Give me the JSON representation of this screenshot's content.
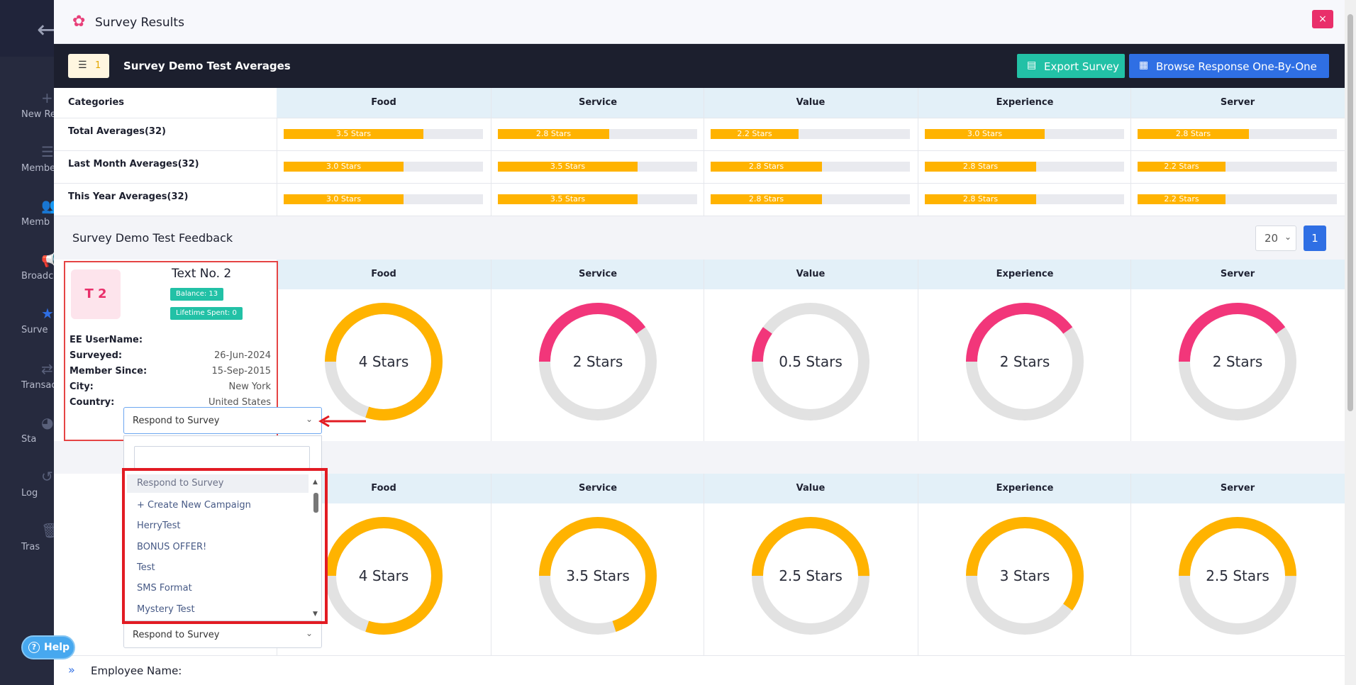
{
  "sidebar": {
    "items": [
      {
        "label": "New Re",
        "icon": "plus-icon"
      },
      {
        "label": "Membe",
        "icon": "list-icon"
      },
      {
        "label": "Memb",
        "icon": "users-icon"
      },
      {
        "label": "Broadc",
        "icon": "megaphone-icon"
      },
      {
        "label": "Surve",
        "icon": "star-icon"
      },
      {
        "label": "Transac",
        "icon": "transactions-icon"
      },
      {
        "label": "Sta",
        "icon": "pie-chart-icon"
      },
      {
        "label": "Log",
        "icon": "history-icon"
      },
      {
        "label": "Tras",
        "icon": "trash-icon"
      }
    ],
    "help_label": "Help"
  },
  "modal": {
    "title": "Survey Results",
    "close_label": "×",
    "filter_count": "1",
    "averages_title": "Survey Demo Test Averages",
    "export_label": "Export Survey",
    "browse_label": "Browse Response One-By-One"
  },
  "averages": {
    "categories_header": "Categories",
    "columns": [
      "Food",
      "Service",
      "Value",
      "Experience",
      "Server"
    ],
    "rows": [
      {
        "label": "Total Averages(32)",
        "values": [
          3.5,
          2.8,
          2.2,
          3.0,
          2.8
        ],
        "labels": [
          "3.5 Stars",
          "2.8 Stars",
          "2.2 Stars",
          "3.0 Stars",
          "2.8 Stars"
        ]
      },
      {
        "label": "Last Month Averages(32)",
        "values": [
          3.0,
          3.5,
          2.8,
          2.8,
          2.2
        ],
        "labels": [
          "3.0 Stars",
          "3.5 Stars",
          "2.8 Stars",
          "2.8 Stars",
          "2.2 Stars"
        ]
      },
      {
        "label": "This Year Averages(32)",
        "values": [
          3.0,
          3.5,
          2.8,
          2.8,
          2.2
        ],
        "labels": [
          "3.0 Stars",
          "3.5 Stars",
          "2.8 Stars",
          "2.8 Stars",
          "2.2 Stars"
        ]
      }
    ],
    "max_stars": 5
  },
  "feedback": {
    "title": "Survey Demo Test Feedback",
    "page_size": "20",
    "page": "1"
  },
  "responses": [
    {
      "columns": [
        "Food",
        "Service",
        "Value",
        "Experience",
        "Server"
      ],
      "ratings": [
        4,
        2,
        0.5,
        2,
        2
      ],
      "labels": [
        "4 Stars",
        "2 Stars",
        "0.5 Stars",
        "2 Stars",
        "2 Stars"
      ],
      "colors": [
        "#ffb300",
        "#f2367a",
        "#f2367a",
        "#f2367a",
        "#f2367a"
      ]
    },
    {
      "columns": [
        "Food",
        "Service",
        "Value",
        "Experience",
        "Server"
      ],
      "ratings": [
        4,
        3.5,
        2.5,
        3,
        2.5
      ],
      "labels": [
        "4 Stars",
        "3.5 Stars",
        "2.5 Stars",
        "3 Stars",
        "2.5 Stars"
      ],
      "colors": [
        "#ffb300",
        "#ffb300",
        "#ffb300",
        "#ffb300",
        "#ffb300"
      ]
    }
  ],
  "customer": {
    "initials": "T 2",
    "name": "Text No. 2",
    "balance": "Balance: 13",
    "lifetime": "Lifetime Spent: 0",
    "fields": [
      {
        "key": "EE UserName:",
        "value": ""
      },
      {
        "key": "Surveyed:",
        "value": "26-Jun-2024"
      },
      {
        "key": "Member Since:",
        "value": "15-Sep-2015"
      },
      {
        "key": "City:",
        "value": "New York"
      },
      {
        "key": "Country:",
        "value": "United States"
      }
    ]
  },
  "respond_select": {
    "value": "Respond to Survey",
    "options": [
      "Respond to Survey",
      "+ Create New Campaign",
      "HerryTest",
      "BONUS OFFER!",
      "Test",
      "SMS Format",
      "Mystery Test"
    ]
  },
  "second_select_value": "Respond to Survey",
  "employee_label": "Employee Name:"
}
